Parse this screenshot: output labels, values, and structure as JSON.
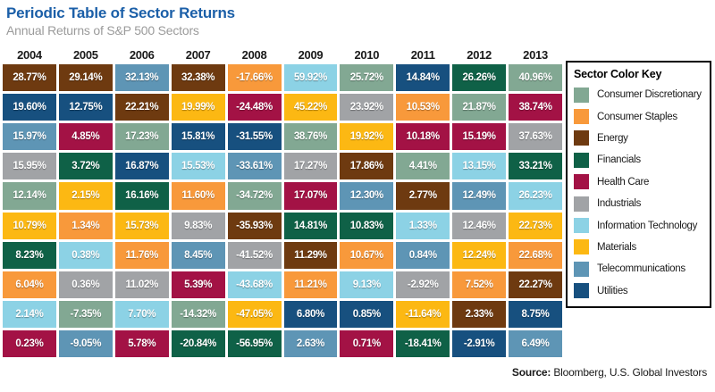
{
  "header": {
    "title": "Periodic Table of Sector Returns",
    "subtitle": "Annual Returns of S&P 500 Sectors"
  },
  "legend": {
    "title": "Sector Color Key",
    "sectors": [
      {
        "name": "Consumer Discretionary",
        "key": "Consumer Discretionary",
        "color": "#82A893"
      },
      {
        "name": "Consumer Staples",
        "key": "Consumer Staples",
        "color": "#F8993B"
      },
      {
        "name": "Energy",
        "key": "Energy",
        "color": "#6E3A10"
      },
      {
        "name": "Financials",
        "key": "Financials",
        "color": "#0F6147"
      },
      {
        "name": "Health Care",
        "key": "Health Care",
        "color": "#A31245"
      },
      {
        "name": "Industrials",
        "key": "Industrials",
        "color": "#A1A3A6"
      },
      {
        "name": "Information Technology",
        "key": "Information Technology",
        "color": "#8CD2E5"
      },
      {
        "name": "Materials",
        "key": "Materials",
        "color": "#FCB813"
      },
      {
        "name": "Telecommunications",
        "key": "Telecommunications",
        "color": "#5E95B5"
      },
      {
        "name": "Utilities",
        "key": "Utilities",
        "color": "#17507F"
      }
    ]
  },
  "source": {
    "label": "Source:",
    "text": " Bloomberg, U.S. Global Investors"
  },
  "chart_data": {
    "type": "table",
    "title": "Periodic Table of Sector Returns",
    "subtitle": "Annual Returns of S&P 500 Sectors",
    "years": [
      "2004",
      "2005",
      "2006",
      "2007",
      "2008",
      "2009",
      "2010",
      "2011",
      "2012",
      "2013"
    ],
    "columns": [
      {
        "year": "2004",
        "cells": [
          {
            "value": "28.77%",
            "sector": "Energy"
          },
          {
            "value": "19.60%",
            "sector": "Utilities"
          },
          {
            "value": "15.97%",
            "sector": "Telecommunications"
          },
          {
            "value": "15.95%",
            "sector": "Industrials"
          },
          {
            "value": "12.14%",
            "sector": "Consumer Discretionary"
          },
          {
            "value": "10.79%",
            "sector": "Materials"
          },
          {
            "value": "8.23%",
            "sector": "Financials"
          },
          {
            "value": "6.04%",
            "sector": "Consumer Staples"
          },
          {
            "value": "2.14%",
            "sector": "Information Technology"
          },
          {
            "value": "0.23%",
            "sector": "Health Care"
          }
        ]
      },
      {
        "year": "2005",
        "cells": [
          {
            "value": "29.14%",
            "sector": "Energy"
          },
          {
            "value": "12.75%",
            "sector": "Utilities"
          },
          {
            "value": "4.85%",
            "sector": "Health Care"
          },
          {
            "value": "3.72%",
            "sector": "Financials"
          },
          {
            "value": "2.15%",
            "sector": "Materials"
          },
          {
            "value": "1.34%",
            "sector": "Consumer Staples"
          },
          {
            "value": "0.38%",
            "sector": "Information Technology"
          },
          {
            "value": "0.36%",
            "sector": "Industrials"
          },
          {
            "value": "-7.35%",
            "sector": "Consumer Discretionary"
          },
          {
            "value": "-9.05%",
            "sector": "Telecommunications"
          }
        ]
      },
      {
        "year": "2006",
        "cells": [
          {
            "value": "32.13%",
            "sector": "Telecommunications"
          },
          {
            "value": "22.21%",
            "sector": "Energy"
          },
          {
            "value": "17.23%",
            "sector": "Consumer Discretionary"
          },
          {
            "value": "16.87%",
            "sector": "Utilities"
          },
          {
            "value": "16.16%",
            "sector": "Financials"
          },
          {
            "value": "15.73%",
            "sector": "Materials"
          },
          {
            "value": "11.76%",
            "sector": "Consumer Staples"
          },
          {
            "value": "11.02%",
            "sector": "Industrials"
          },
          {
            "value": "7.70%",
            "sector": "Information Technology"
          },
          {
            "value": "5.78%",
            "sector": "Health Care"
          }
        ]
      },
      {
        "year": "2007",
        "cells": [
          {
            "value": "32.38%",
            "sector": "Energy"
          },
          {
            "value": "19.99%",
            "sector": "Materials"
          },
          {
            "value": "15.81%",
            "sector": "Utilities"
          },
          {
            "value": "15.53%",
            "sector": "Information Technology"
          },
          {
            "value": "11.60%",
            "sector": "Consumer Staples"
          },
          {
            "value": "9.83%",
            "sector": "Industrials"
          },
          {
            "value": "8.45%",
            "sector": "Telecommunications"
          },
          {
            "value": "5.39%",
            "sector": "Health Care"
          },
          {
            "value": "-14.32%",
            "sector": "Consumer Discretionary"
          },
          {
            "value": "-20.84%",
            "sector": "Financials"
          }
        ]
      },
      {
        "year": "2008",
        "cells": [
          {
            "value": "-17.66%",
            "sector": "Consumer Staples"
          },
          {
            "value": "-24.48%",
            "sector": "Health Care"
          },
          {
            "value": "-31.55%",
            "sector": "Utilities"
          },
          {
            "value": "-33.61%",
            "sector": "Telecommunications"
          },
          {
            "value": "-34.72%",
            "sector": "Consumer Discretionary"
          },
          {
            "value": "-35.93%",
            "sector": "Energy"
          },
          {
            "value": "-41.52%",
            "sector": "Industrials"
          },
          {
            "value": "-43.68%",
            "sector": "Information Technology"
          },
          {
            "value": "-47.05%",
            "sector": "Materials"
          },
          {
            "value": "-56.95%",
            "sector": "Financials"
          }
        ]
      },
      {
        "year": "2009",
        "cells": [
          {
            "value": "59.92%",
            "sector": "Information Technology"
          },
          {
            "value": "45.22%",
            "sector": "Materials"
          },
          {
            "value": "38.76%",
            "sector": "Consumer Discretionary"
          },
          {
            "value": "17.27%",
            "sector": "Industrials"
          },
          {
            "value": "17.07%",
            "sector": "Health Care"
          },
          {
            "value": "14.81%",
            "sector": "Financials"
          },
          {
            "value": "11.29%",
            "sector": "Energy"
          },
          {
            "value": "11.21%",
            "sector": "Consumer Staples"
          },
          {
            "value": "6.80%",
            "sector": "Utilities"
          },
          {
            "value": "2.63%",
            "sector": "Telecommunications"
          }
        ]
      },
      {
        "year": "2010",
        "cells": [
          {
            "value": "25.72%",
            "sector": "Consumer Discretionary"
          },
          {
            "value": "23.92%",
            "sector": "Industrials"
          },
          {
            "value": "19.92%",
            "sector": "Materials"
          },
          {
            "value": "17.86%",
            "sector": "Energy"
          },
          {
            "value": "12.30%",
            "sector": "Telecommunications"
          },
          {
            "value": "10.83%",
            "sector": "Financials"
          },
          {
            "value": "10.67%",
            "sector": "Consumer Staples"
          },
          {
            "value": "9.13%",
            "sector": "Information Technology"
          },
          {
            "value": "0.85%",
            "sector": "Utilities"
          },
          {
            "value": "0.71%",
            "sector": "Health Care"
          }
        ]
      },
      {
        "year": "2011",
        "cells": [
          {
            "value": "14.84%",
            "sector": "Utilities"
          },
          {
            "value": "10.53%",
            "sector": "Consumer Staples"
          },
          {
            "value": "10.18%",
            "sector": "Health Care"
          },
          {
            "value": "4.41%",
            "sector": "Consumer Discretionary"
          },
          {
            "value": "2.77%",
            "sector": "Energy"
          },
          {
            "value": "1.33%",
            "sector": "Information Technology"
          },
          {
            "value": "0.84%",
            "sector": "Telecommunications"
          },
          {
            "value": "-2.92%",
            "sector": "Industrials"
          },
          {
            "value": "-11.64%",
            "sector": "Materials"
          },
          {
            "value": "-18.41%",
            "sector": "Financials"
          }
        ]
      },
      {
        "year": "2012",
        "cells": [
          {
            "value": "26.26%",
            "sector": "Financials"
          },
          {
            "value": "21.87%",
            "sector": "Consumer Discretionary"
          },
          {
            "value": "15.19%",
            "sector": "Health Care"
          },
          {
            "value": "13.15%",
            "sector": "Information Technology"
          },
          {
            "value": "12.49%",
            "sector": "Telecommunications"
          },
          {
            "value": "12.46%",
            "sector": "Industrials"
          },
          {
            "value": "12.24%",
            "sector": "Materials"
          },
          {
            "value": "7.52%",
            "sector": "Consumer Staples"
          },
          {
            "value": "2.33%",
            "sector": "Energy"
          },
          {
            "value": "-2.91%",
            "sector": "Utilities"
          }
        ]
      },
      {
        "year": "2013",
        "cells": [
          {
            "value": "40.96%",
            "sector": "Consumer Discretionary"
          },
          {
            "value": "38.74%",
            "sector": "Health Care"
          },
          {
            "value": "37.63%",
            "sector": "Industrials"
          },
          {
            "value": "33.21%",
            "sector": "Financials"
          },
          {
            "value": "26.23%",
            "sector": "Information Technology"
          },
          {
            "value": "22.73%",
            "sector": "Materials"
          },
          {
            "value": "22.68%",
            "sector": "Consumer Staples"
          },
          {
            "value": "22.27%",
            "sector": "Energy"
          },
          {
            "value": "8.75%",
            "sector": "Utilities"
          },
          {
            "value": "6.49%",
            "sector": "Telecommunications"
          }
        ]
      }
    ]
  }
}
